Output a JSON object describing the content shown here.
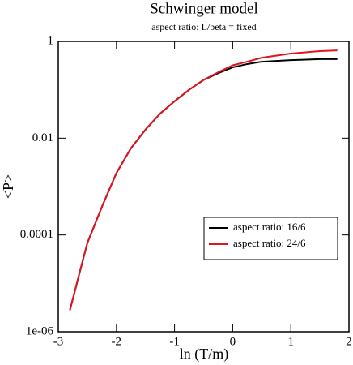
{
  "chart_data": {
    "type": "line",
    "title": "Schwinger model",
    "subtitle": "aspect ratio: L/beta = fixed",
    "x_label": "ln (T/m)",
    "y_label": "<P>",
    "y_scale": "log",
    "xlim": [
      -3,
      2
    ],
    "xticks": [
      -3,
      -2,
      -1,
      0,
      1,
      2
    ],
    "ylim": [
      1e-06,
      1
    ],
    "yticks": [
      {
        "value": 1e-06,
        "label": "1e-06"
      },
      0.0001,
      0.01,
      1
    ],
    "legend_position": "lower-right",
    "x": [
      -2.8,
      -2.5,
      -2.25,
      -2,
      -1.75,
      -1.5,
      -1.25,
      -1,
      -0.75,
      -0.5,
      -0.25,
      0,
      0.25,
      0.5,
      1,
      1.5,
      1.8
    ],
    "series": [
      {
        "name": "aspect ratio: 16/6",
        "color": "#000000",
        "values": [
          2.8e-06,
          6.8e-05,
          0.00038,
          0.0019,
          0.0062,
          0.015,
          0.032,
          0.058,
          0.1,
          0.16,
          0.22,
          0.29,
          0.34,
          0.38,
          0.41,
          0.43,
          0.43
        ]
      },
      {
        "name": "aspect ratio: 24/6",
        "color": "#e0141e",
        "values": [
          2.8e-06,
          6.8e-05,
          0.00038,
          0.0019,
          0.0062,
          0.015,
          0.032,
          0.058,
          0.1,
          0.16,
          0.23,
          0.32,
          0.38,
          0.46,
          0.56,
          0.63,
          0.65
        ]
      }
    ]
  }
}
